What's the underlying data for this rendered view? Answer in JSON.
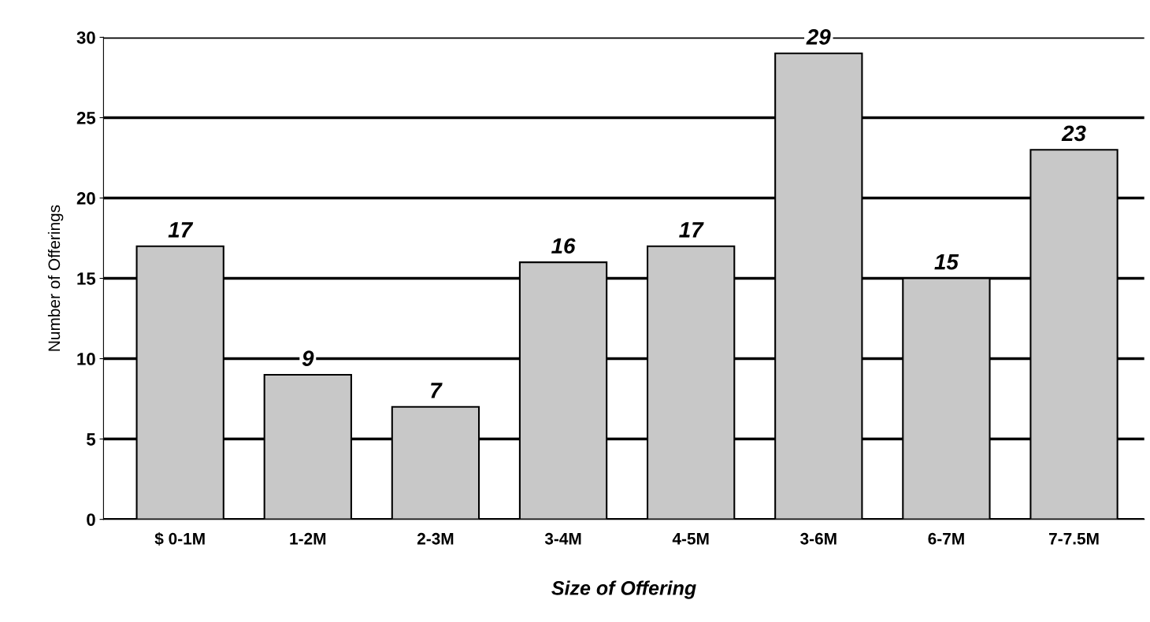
{
  "chart_data": {
    "type": "bar",
    "xlabel": "Size of Offering",
    "ylabel": "Number of Offerings",
    "categories": [
      "$ 0-1M",
      "1-2M",
      "2-3M",
      "3-4M",
      "4-5M",
      "3-6M",
      "6-7M",
      "7-7.5M"
    ],
    "values": [
      17,
      9,
      7,
      16,
      17,
      29,
      15,
      23
    ],
    "color": "#c8c8c8",
    "ylim": [
      0,
      30
    ],
    "yticks": [
      0,
      5,
      10,
      15,
      20,
      25,
      30
    ],
    "grid": "y",
    "data_labels": true
  }
}
